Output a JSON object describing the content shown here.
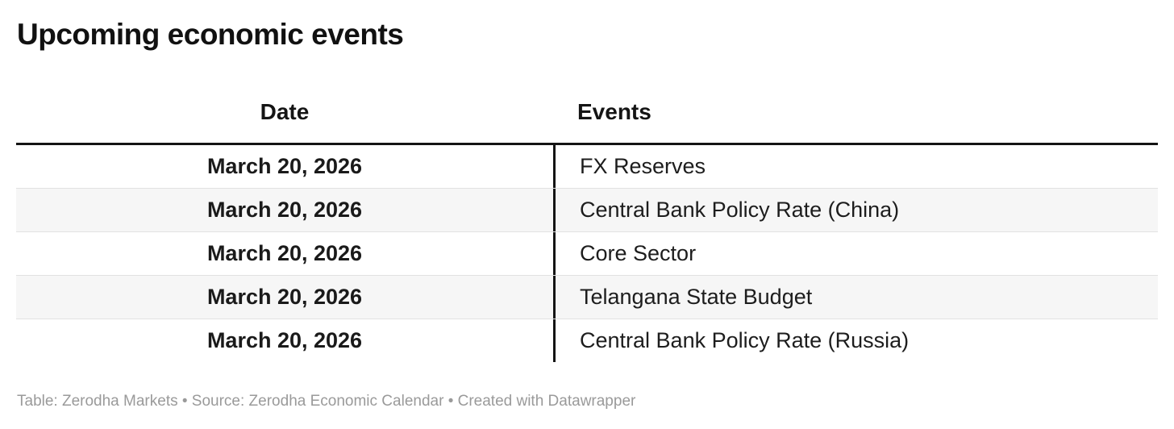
{
  "title": "Upcoming economic events",
  "chart_data": {
    "type": "table",
    "title": "Upcoming economic events",
    "columns": [
      "Date",
      "Events"
    ],
    "rows": [
      {
        "date": "March 20, 2026",
        "event": "FX Reserves"
      },
      {
        "date": "March 20, 2026",
        "event": "Central Bank Policy Rate (China)"
      },
      {
        "date": "March 20, 2026",
        "event": "Core Sector"
      },
      {
        "date": "March 20, 2026",
        "event": "Telangana State Budget"
      },
      {
        "date": "March 20, 2026",
        "event": "Central Bank Policy Rate (Russia)"
      }
    ],
    "layout_hints": {
      "date_column_align": "center",
      "date_column_bold": true,
      "events_column_align": "left",
      "striped_rows": true,
      "header_rule": true,
      "column_divider": true
    }
  },
  "footer": {
    "text": "Table: Zerodha Markets • Source: Zerodha Economic Calendar • Created with Datawrapper",
    "table_credit": "Zerodha Markets",
    "source": "Zerodha Economic Calendar",
    "created_with": "Datawrapper"
  },
  "colors": {
    "background": "#ffffff",
    "text": "#1a1a1a",
    "title": "#111111",
    "header_rule": "#141414",
    "column_divider": "#141414",
    "row_stripe": "#f6f6f6",
    "row_border": "#e2e2e2",
    "footer_text": "#9a9a9a"
  }
}
